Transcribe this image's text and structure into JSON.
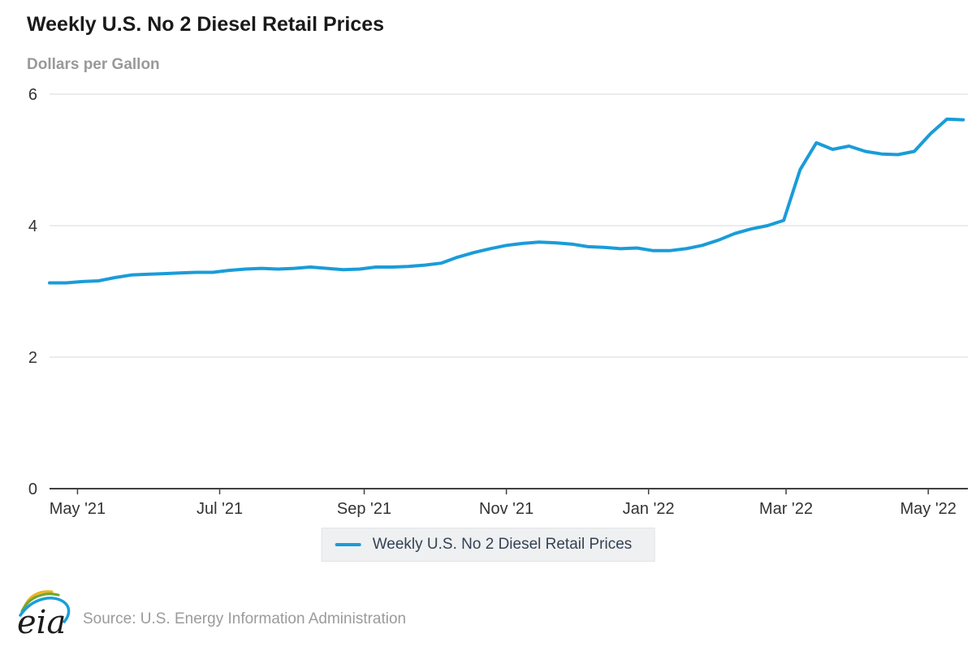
{
  "header": {
    "title": "Weekly U.S. No 2 Diesel Retail Prices",
    "subtitle": "Dollars per Gallon"
  },
  "legend": {
    "label": "Weekly U.S. No 2 Diesel Retail Prices"
  },
  "footer": {
    "logo_text": "eia",
    "source": "Source: U.S. Energy Information Administration"
  },
  "colors": {
    "line": "#1a9cd8",
    "grid": "#d8d8d8",
    "axis": "#404040",
    "tick_label": "#333333",
    "title": "#1a1a1a",
    "subtitle": "#98999b",
    "legend_bg": "#eff0f1",
    "legend_text": "#334355",
    "source_text": "#9b9b9b",
    "logo_yellow": "#f2b01e",
    "logo_green": "#71a832",
    "logo_blue": "#1b9ed9"
  },
  "chart_data": {
    "type": "line",
    "title": "Weekly U.S. No 2 Diesel Retail Prices",
    "ylabel": "Dollars per Gallon",
    "xlabel": "",
    "ylim": [
      0,
      6
    ],
    "yticks": [
      0,
      2,
      4,
      6
    ],
    "grid": true,
    "legend_position": "bottom",
    "x_domain": [
      "2021-04-19",
      "2022-05-18"
    ],
    "xticks": [
      {
        "date": "2021-05-01",
        "label": "May '21"
      },
      {
        "date": "2021-07-01",
        "label": "Jul '21"
      },
      {
        "date": "2021-09-01",
        "label": "Sep '21"
      },
      {
        "date": "2021-11-01",
        "label": "Nov '21"
      },
      {
        "date": "2022-01-01",
        "label": "Jan '22"
      },
      {
        "date": "2022-03-01",
        "label": "Mar '22"
      },
      {
        "date": "2022-05-01",
        "label": "May '22"
      }
    ],
    "series": [
      {
        "name": "Weekly U.S. No 2 Diesel Retail Prices",
        "color": "#1a9cd8",
        "points": [
          [
            "2021-04-19",
            3.13
          ],
          [
            "2021-04-26",
            3.13
          ],
          [
            "2021-05-03",
            3.15
          ],
          [
            "2021-05-10",
            3.16
          ],
          [
            "2021-05-17",
            3.21
          ],
          [
            "2021-05-24",
            3.25
          ],
          [
            "2021-05-31",
            3.26
          ],
          [
            "2021-06-07",
            3.27
          ],
          [
            "2021-06-14",
            3.28
          ],
          [
            "2021-06-21",
            3.29
          ],
          [
            "2021-06-28",
            3.29
          ],
          [
            "2021-07-05",
            3.32
          ],
          [
            "2021-07-12",
            3.34
          ],
          [
            "2021-07-19",
            3.35
          ],
          [
            "2021-07-26",
            3.34
          ],
          [
            "2021-08-02",
            3.35
          ],
          [
            "2021-08-09",
            3.37
          ],
          [
            "2021-08-16",
            3.35
          ],
          [
            "2021-08-23",
            3.33
          ],
          [
            "2021-08-30",
            3.34
          ],
          [
            "2021-09-06",
            3.37
          ],
          [
            "2021-09-13",
            3.37
          ],
          [
            "2021-09-20",
            3.38
          ],
          [
            "2021-09-27",
            3.4
          ],
          [
            "2021-10-04",
            3.43
          ],
          [
            "2021-10-11",
            3.52
          ],
          [
            "2021-10-18",
            3.59
          ],
          [
            "2021-10-25",
            3.65
          ],
          [
            "2021-11-01",
            3.7
          ],
          [
            "2021-11-08",
            3.73
          ],
          [
            "2021-11-15",
            3.75
          ],
          [
            "2021-11-22",
            3.74
          ],
          [
            "2021-11-29",
            3.72
          ],
          [
            "2021-12-06",
            3.68
          ],
          [
            "2021-12-13",
            3.67
          ],
          [
            "2021-12-20",
            3.65
          ],
          [
            "2021-12-27",
            3.66
          ],
          [
            "2022-01-03",
            3.62
          ],
          [
            "2022-01-10",
            3.62
          ],
          [
            "2022-01-17",
            3.65
          ],
          [
            "2022-01-24",
            3.7
          ],
          [
            "2022-01-31",
            3.78
          ],
          [
            "2022-02-07",
            3.88
          ],
          [
            "2022-02-14",
            3.95
          ],
          [
            "2022-02-21",
            4.0
          ],
          [
            "2022-02-28",
            4.08
          ],
          [
            "2022-03-07",
            4.85
          ],
          [
            "2022-03-14",
            5.26
          ],
          [
            "2022-03-21",
            5.16
          ],
          [
            "2022-03-28",
            5.21
          ],
          [
            "2022-04-04",
            5.13
          ],
          [
            "2022-04-11",
            5.09
          ],
          [
            "2022-04-18",
            5.08
          ],
          [
            "2022-04-25",
            5.13
          ],
          [
            "2022-05-02",
            5.4
          ],
          [
            "2022-05-09",
            5.62
          ],
          [
            "2022-05-16",
            5.61
          ]
        ]
      }
    ]
  }
}
